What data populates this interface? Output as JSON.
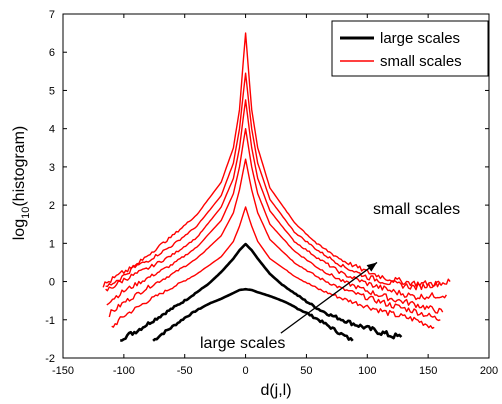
{
  "chart_data": {
    "type": "line",
    "title": "",
    "xlabel": "d(j,l)",
    "ylabel": "log",
    "ylabel_sub": "10",
    "ylabel_rest": "(histogram)",
    "xlim": [
      -150,
      200
    ],
    "ylim": [
      -2,
      7
    ],
    "xticks": [
      -150,
      -100,
      -50,
      0,
      50,
      100,
      150,
      200
    ],
    "yticks": [
      -2,
      -1,
      0,
      1,
      2,
      3,
      4,
      5,
      6,
      7
    ],
    "grid": false,
    "legend": {
      "placement": "top-right",
      "entries": [
        {
          "label": "large scales",
          "color": "#000000",
          "width": 3
        },
        {
          "label": "small scales",
          "color": "#ff0000",
          "width": 1.4
        }
      ]
    },
    "annotations": {
      "small": "small scales",
      "large": "large scales"
    },
    "arrow": {
      "from": [
        29,
        -1.35
      ],
      "to": [
        108,
        0.5
      ]
    },
    "series": [
      {
        "group": "large",
        "color": "#000000",
        "x": [
          -76,
          -70,
          -60,
          -50,
          -40,
          -30,
          -20,
          -10,
          -5,
          0,
          5,
          10,
          20,
          30,
          40,
          50,
          60,
          70,
          80,
          88
        ],
        "y": [
          -1.55,
          -1.4,
          -1.18,
          -0.95,
          -0.75,
          -0.58,
          -0.45,
          -0.3,
          -0.22,
          -0.2,
          -0.22,
          -0.28,
          -0.38,
          -0.5,
          -0.66,
          -0.82,
          -1.0,
          -1.2,
          -1.4,
          -1.55
        ]
      },
      {
        "group": "large",
        "color": "#000000",
        "x": [
          -103,
          -90,
          -80,
          -70,
          -60,
          -50,
          -40,
          -30,
          -20,
          -10,
          -5,
          0,
          5,
          10,
          20,
          30,
          40,
          50,
          60,
          70,
          80,
          90,
          100,
          110,
          120,
          128
        ],
        "y": [
          -1.5,
          -1.3,
          -1.1,
          -0.9,
          -0.7,
          -0.5,
          -0.28,
          -0.05,
          0.25,
          0.6,
          0.82,
          0.98,
          0.82,
          0.6,
          0.2,
          -0.08,
          -0.3,
          -0.52,
          -0.72,
          -0.88,
          -1.0,
          -1.12,
          -1.22,
          -1.32,
          -1.42,
          -1.45
        ]
      },
      {
        "group": "small",
        "color": "#ff0000",
        "x": [
          -110,
          -100,
          -80,
          -60,
          -40,
          -20,
          -10,
          -5,
          0,
          5,
          10,
          20,
          40,
          60,
          80,
          100,
          120,
          140,
          155
        ],
        "y": [
          -1.2,
          -0.9,
          -0.5,
          -0.15,
          0.2,
          0.65,
          1.05,
          1.45,
          1.95,
          1.45,
          1.05,
          0.6,
          0.15,
          -0.2,
          -0.45,
          -0.65,
          -0.85,
          -1.0,
          -1.2
        ]
      },
      {
        "group": "small",
        "color": "#ff0000",
        "x": [
          -112,
          -100,
          -80,
          -60,
          -40,
          -20,
          -10,
          -5,
          0,
          5,
          10,
          20,
          40,
          60,
          80,
          100,
          120,
          140,
          160
        ],
        "y": [
          -0.85,
          -0.55,
          -0.15,
          0.2,
          0.6,
          1.2,
          1.8,
          2.4,
          3.2,
          2.4,
          1.8,
          1.1,
          0.5,
          0.1,
          -0.2,
          -0.42,
          -0.62,
          -0.78,
          -1.0
        ]
      },
      {
        "group": "small",
        "color": "#ff0000",
        "x": [
          -114,
          -100,
          -80,
          -60,
          -40,
          -20,
          -10,
          -5,
          0,
          5,
          10,
          20,
          40,
          60,
          80,
          100,
          120,
          140,
          162
        ],
        "y": [
          -0.55,
          -0.25,
          0.1,
          0.45,
          0.9,
          1.6,
          2.3,
          3.0,
          4.0,
          3.0,
          2.3,
          1.5,
          0.8,
          0.35,
          0.0,
          -0.25,
          -0.45,
          -0.6,
          -0.8
        ]
      },
      {
        "group": "small",
        "color": "#ff0000",
        "x": [
          -115,
          -100,
          -80,
          -60,
          -40,
          -20,
          -10,
          -5,
          0,
          5,
          10,
          20,
          40,
          60,
          80,
          100,
          120,
          140,
          165
        ],
        "y": [
          -0.25,
          0.05,
          0.35,
          0.7,
          1.15,
          1.95,
          2.7,
          3.5,
          4.75,
          3.5,
          2.7,
          1.85,
          1.05,
          0.6,
          0.2,
          -0.05,
          -0.25,
          -0.4,
          -0.35
        ]
      },
      {
        "group": "small",
        "color": "#ff0000",
        "x": [
          -117,
          -100,
          -80,
          -60,
          -40,
          -20,
          -10,
          -5,
          0,
          5,
          10,
          20,
          40,
          60,
          80,
          100,
          120,
          140,
          168
        ],
        "y": [
          -0.1,
          0.25,
          0.55,
          0.95,
          1.45,
          2.25,
          3.1,
          4.0,
          5.45,
          4.0,
          3.1,
          2.15,
          1.3,
          0.8,
          0.4,
          0.12,
          -0.05,
          -0.15,
          0.0
        ]
      },
      {
        "group": "small",
        "color": "#ff0000",
        "x": [
          -115,
          -100,
          -80,
          -60,
          -40,
          -20,
          -10,
          -5,
          0,
          5,
          10,
          20,
          40,
          60,
          80,
          100,
          120,
          140,
          160
        ],
        "y": [
          -0.15,
          0.15,
          0.7,
          1.2,
          1.75,
          2.6,
          3.5,
          4.5,
          6.5,
          4.5,
          3.5,
          2.45,
          1.55,
          0.95,
          0.55,
          0.25,
          0.05,
          -0.05,
          -0.05
        ]
      }
    ]
  }
}
